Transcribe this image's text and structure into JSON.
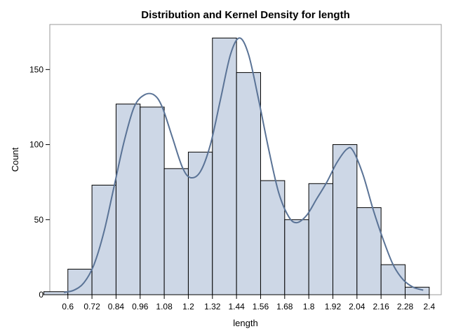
{
  "chart_data": {
    "type": "bar",
    "title": "Distribution and Kernel Density for length",
    "xlabel": "length",
    "ylabel": "Count",
    "ylim": [
      0,
      180
    ],
    "xlim": [
      0.51,
      2.46
    ],
    "yticks": [
      0,
      50,
      100,
      150
    ],
    "xticks": [
      "0.6",
      "0.72",
      "0.84",
      "0.96",
      "1.08",
      "1.2",
      "1.32",
      "1.44",
      "1.56",
      "1.68",
      "1.8",
      "1.92",
      "2.04",
      "2.16",
      "2.28",
      "2.4"
    ],
    "bin_width": 0.12,
    "bins": [
      {
        "center": 0.54,
        "count": 2
      },
      {
        "center": 0.66,
        "count": 17
      },
      {
        "center": 0.78,
        "count": 73
      },
      {
        "center": 0.9,
        "count": 127
      },
      {
        "center": 1.02,
        "count": 125
      },
      {
        "center": 1.14,
        "count": 84
      },
      {
        "center": 1.26,
        "count": 95
      },
      {
        "center": 1.38,
        "count": 171
      },
      {
        "center": 1.5,
        "count": 148
      },
      {
        "center": 1.62,
        "count": 76
      },
      {
        "center": 1.74,
        "count": 50
      },
      {
        "center": 1.86,
        "count": 74
      },
      {
        "center": 1.98,
        "count": 100
      },
      {
        "center": 2.1,
        "count": 58
      },
      {
        "center": 2.22,
        "count": 20
      },
      {
        "center": 2.34,
        "count": 5
      }
    ],
    "density_curve": [
      [
        0.58,
        1.5
      ],
      [
        0.63,
        3
      ],
      [
        0.68,
        8
      ],
      [
        0.73,
        20
      ],
      [
        0.78,
        42
      ],
      [
        0.83,
        72
      ],
      [
        0.88,
        102
      ],
      [
        0.93,
        125
      ],
      [
        0.98,
        133
      ],
      [
        1.03,
        133
      ],
      [
        1.07,
        125
      ],
      [
        1.12,
        105
      ],
      [
        1.17,
        85
      ],
      [
        1.21,
        78
      ],
      [
        1.26,
        82
      ],
      [
        1.31,
        100
      ],
      [
        1.36,
        130
      ],
      [
        1.41,
        160
      ],
      [
        1.455,
        171
      ],
      [
        1.5,
        160
      ],
      [
        1.55,
        130
      ],
      [
        1.6,
        97
      ],
      [
        1.65,
        68
      ],
      [
        1.7,
        52
      ],
      [
        1.74,
        48
      ],
      [
        1.79,
        53
      ],
      [
        1.84,
        64
      ],
      [
        1.89,
        75
      ],
      [
        1.94,
        88
      ],
      [
        1.99,
        97
      ],
      [
        2.02,
        96
      ],
      [
        2.07,
        80
      ],
      [
        2.12,
        57
      ],
      [
        2.17,
        37
      ],
      [
        2.22,
        20
      ],
      [
        2.27,
        10
      ],
      [
        2.32,
        5
      ],
      [
        2.37,
        3
      ]
    ],
    "legend": "none",
    "grid": false,
    "colors": {
      "bar_fill": "#cdd7e6",
      "bar_stroke": "#000000",
      "curve": "#5a7396",
      "frame": "#9a9a9a"
    }
  }
}
